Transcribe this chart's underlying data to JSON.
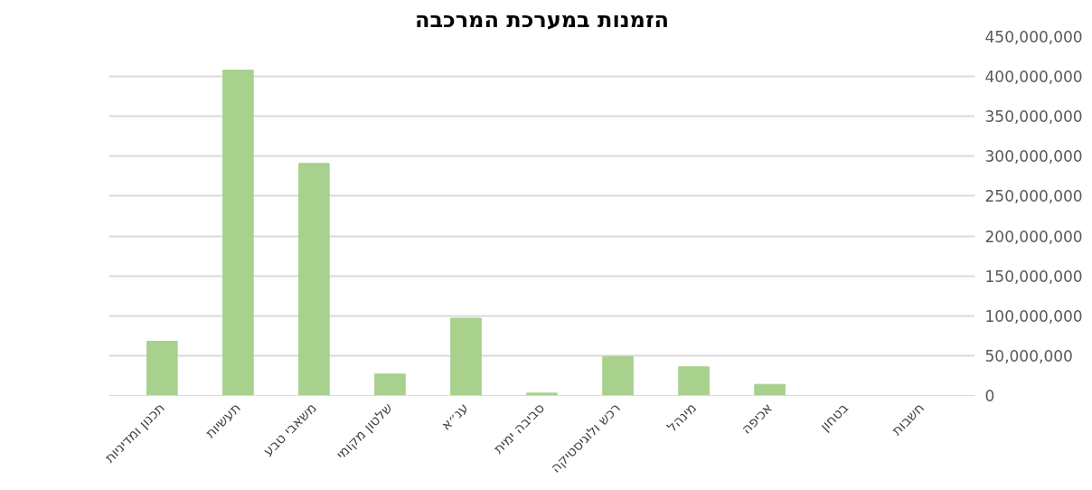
{
  "chart_data": {
    "type": "bar",
    "title": "הזמנות במערכת המרכבה",
    "categories": [
      "תכנון ומדיניות",
      "תעשיות",
      "משאבי טבע",
      "שלטון מקומי",
      "ענ״א",
      "סביבה ימית",
      "רכש ולוגיסטיקה",
      "מינהל",
      "אכיפה",
      "בטחון",
      "חשבות"
    ],
    "values": [
      68000000,
      408000000,
      291000000,
      27000000,
      97000000,
      3000000,
      49000000,
      36000000,
      14000000,
      0,
      0
    ],
    "color": "#a9d18e",
    "ylim": [
      0,
      450000000
    ],
    "yticks": [
      {
        "value": 0,
        "label": "0"
      },
      {
        "value": 50000000,
        "label": "50,000,000"
      },
      {
        "value": 100000000,
        "label": "100,000,000"
      },
      {
        "value": 150000000,
        "label": "150,000,000"
      },
      {
        "value": 200000000,
        "label": "200,000,000"
      },
      {
        "value": 250000000,
        "label": "250,000,000"
      },
      {
        "value": 300000000,
        "label": "300,000,000"
      },
      {
        "value": 350000000,
        "label": "350,000,000"
      },
      {
        "value": 400000000,
        "label": "400,000,000"
      },
      {
        "value": 450000000,
        "label": "450,000,000"
      }
    ],
    "grid": "y"
  }
}
